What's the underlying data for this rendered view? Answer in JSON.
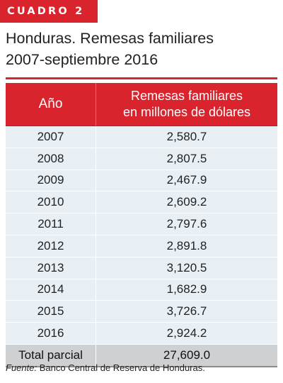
{
  "badge": "CUADRO 2",
  "title_line1": "Honduras. Remesas familiares",
  "title_line2": "2007-septiembre 2016",
  "header": {
    "col1": "Año",
    "col2_line1": "Remesas familiares",
    "col2_line2": "en millones de dólares"
  },
  "rows": [
    {
      "year": "2007",
      "value": "2,580.7"
    },
    {
      "year": "2008",
      "value": "2,807.5"
    },
    {
      "year": "2009",
      "value": "2,467.9"
    },
    {
      "year": "2010",
      "value": "2,609.2"
    },
    {
      "year": "2011",
      "value": "2,797.6"
    },
    {
      "year": "2012",
      "value": "2,891.8"
    },
    {
      "year": "2013",
      "value": "3,120.5"
    },
    {
      "year": "2014",
      "value": "1,682.9"
    },
    {
      "year": "2015",
      "value": "3,726.7"
    },
    {
      "year": "2016",
      "value": "2,924.2"
    }
  ],
  "total": {
    "label": "Total parcial",
    "value": "27,609.0"
  },
  "source": {
    "label": "Fuente:",
    "text": " Banco Central de Reserva de Honduras."
  },
  "colors": {
    "accent": "#d9232d",
    "row_bg": "#e8f0f6",
    "total_bg": "#cfd0d2"
  }
}
